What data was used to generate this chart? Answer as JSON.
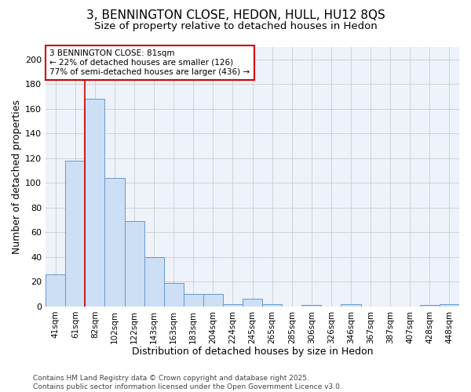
{
  "title1": "3, BENNINGTON CLOSE, HEDON, HULL, HU12 8QS",
  "title2": "Size of property relative to detached houses in Hedon",
  "xlabel": "Distribution of detached houses by size in Hedon",
  "ylabel": "Number of detached properties",
  "categories": [
    "41sqm",
    "61sqm",
    "82sqm",
    "102sqm",
    "122sqm",
    "143sqm",
    "163sqm",
    "183sqm",
    "204sqm",
    "224sqm",
    "245sqm",
    "265sqm",
    "285sqm",
    "306sqm",
    "326sqm",
    "346sqm",
    "367sqm",
    "387sqm",
    "407sqm",
    "428sqm",
    "448sqm"
  ],
  "values": [
    26,
    118,
    168,
    104,
    69,
    40,
    19,
    10,
    10,
    2,
    6,
    2,
    0,
    1,
    0,
    2,
    0,
    0,
    0,
    1,
    2
  ],
  "bar_color": "#ccdff5",
  "bar_edge_color": "#6699cc",
  "vline_x_idx": 2,
  "vline_color": "#cc0000",
  "annotation_text": "3 BENNINGTON CLOSE: 81sqm\n← 22% of detached houses are smaller (126)\n77% of semi-detached houses are larger (436) →",
  "annotation_box_color": "#ffffff",
  "annotation_box_edge": "#cc0000",
  "ylim": [
    0,
    210
  ],
  "yticks": [
    0,
    20,
    40,
    60,
    80,
    100,
    120,
    140,
    160,
    180,
    200
  ],
  "grid_color": "#cccccc",
  "background_color": "#ffffff",
  "plot_bg_color": "#eef2fa",
  "footer": "Contains HM Land Registry data © Crown copyright and database right 2025.\nContains public sector information licensed under the Open Government Licence v3.0.",
  "title_fontsize": 11,
  "subtitle_fontsize": 9.5,
  "axis_label_fontsize": 9,
  "tick_fontsize": 7.5,
  "footer_fontsize": 6.5
}
